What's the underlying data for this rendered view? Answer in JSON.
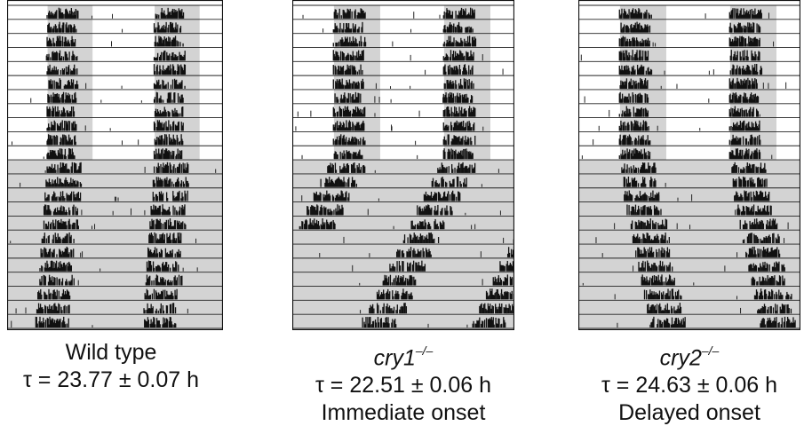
{
  "panels": [
    {
      "genotype_text": "Wild type",
      "genotype_italic": false,
      "superscript": "",
      "period_label": "τ = 23.77 ± 0.07 h",
      "onset_label": "",
      "period_h": 23.77,
      "rows": 23,
      "light_dark_days": 11,
      "shading_color": "#d3d3d3"
    },
    {
      "genotype_text": "cry1",
      "genotype_italic": true,
      "superscript": "–/–",
      "period_label": "τ = 22.51 ± 0.06 h",
      "onset_label": "Immediate onset",
      "period_h": 22.51,
      "rows": 23,
      "light_dark_days": 11,
      "shading_color": "#d3d3d3"
    },
    {
      "genotype_text": "cry2",
      "genotype_italic": true,
      "superscript": "–/–",
      "period_label": "τ = 24.63 ± 0.06 h",
      "onset_label": "Delayed onset",
      "period_h": 24.63,
      "rows": 23,
      "light_dark_days": 11,
      "shading_color": "#d3d3d3"
    }
  ]
}
